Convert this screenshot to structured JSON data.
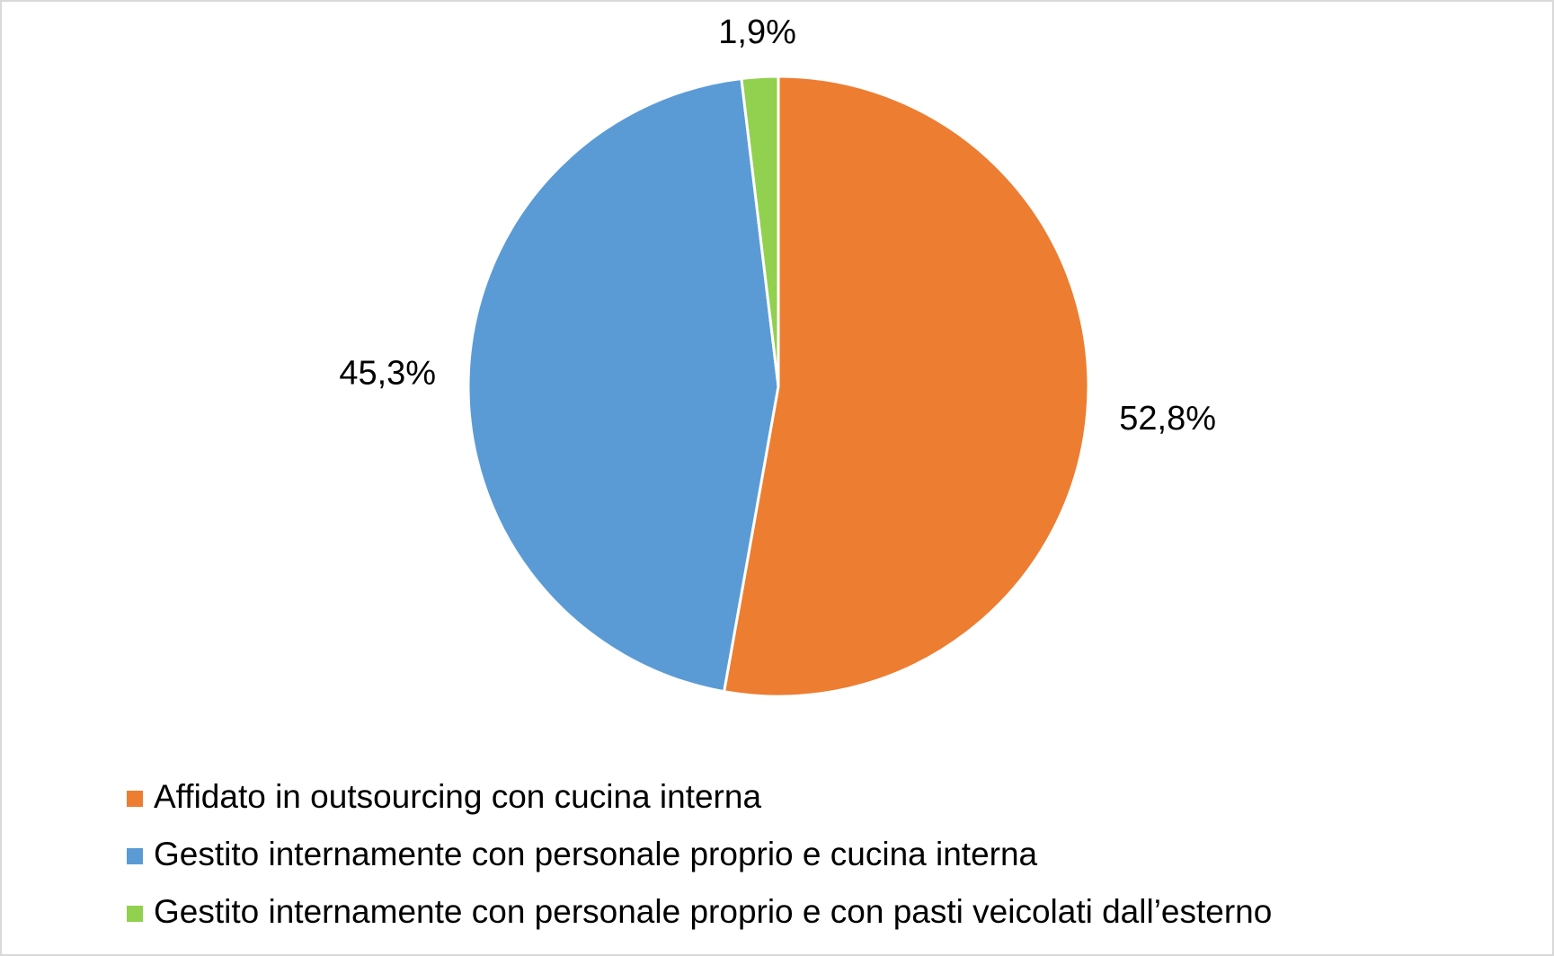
{
  "chart_data": {
    "type": "pie",
    "categories": [
      "Affidato in outsourcing con cucina interna",
      "Gestito internamente con personale proprio e cucina interna",
      "Gestito internamente con personale proprio e con pasti veicolati dall’esterno"
    ],
    "values": [
      52.8,
      45.3,
      1.9
    ],
    "value_labels": [
      "52,8%",
      "45,3%",
      "1,9%"
    ],
    "colors": [
      "#ed7d31",
      "#5b9bd5",
      "#92d050"
    ],
    "legend": "bottom-left"
  }
}
